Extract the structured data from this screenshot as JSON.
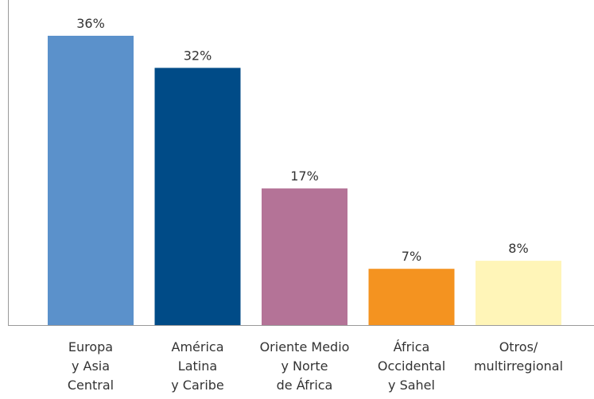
{
  "chart_data": {
    "type": "bar",
    "title": "",
    "xlabel": "",
    "ylabel": "",
    "categories": [
      [
        "Europa",
        "y Asia",
        "Central"
      ],
      [
        "América",
        "Latina",
        "y Caribe"
      ],
      [
        "Oriente Medio",
        "y Norte",
        "de África"
      ],
      [
        "África",
        "Occidental",
        "y Sahel"
      ],
      [
        "Otros/",
        "multirregional"
      ]
    ],
    "values": [
      36,
      32,
      17,
      7,
      8
    ],
    "value_labels": [
      "36%",
      "32%",
      "17%",
      "7%",
      "8%"
    ],
    "colors": [
      "#5b91cb",
      "#004b87",
      "#b47397",
      "#f49320",
      "#fff5b8"
    ],
    "unit": "%",
    "ylim": [
      0,
      36
    ],
    "grid": false,
    "axes": {
      "y_axis_visible": true,
      "y_ticks_visible": false
    }
  }
}
